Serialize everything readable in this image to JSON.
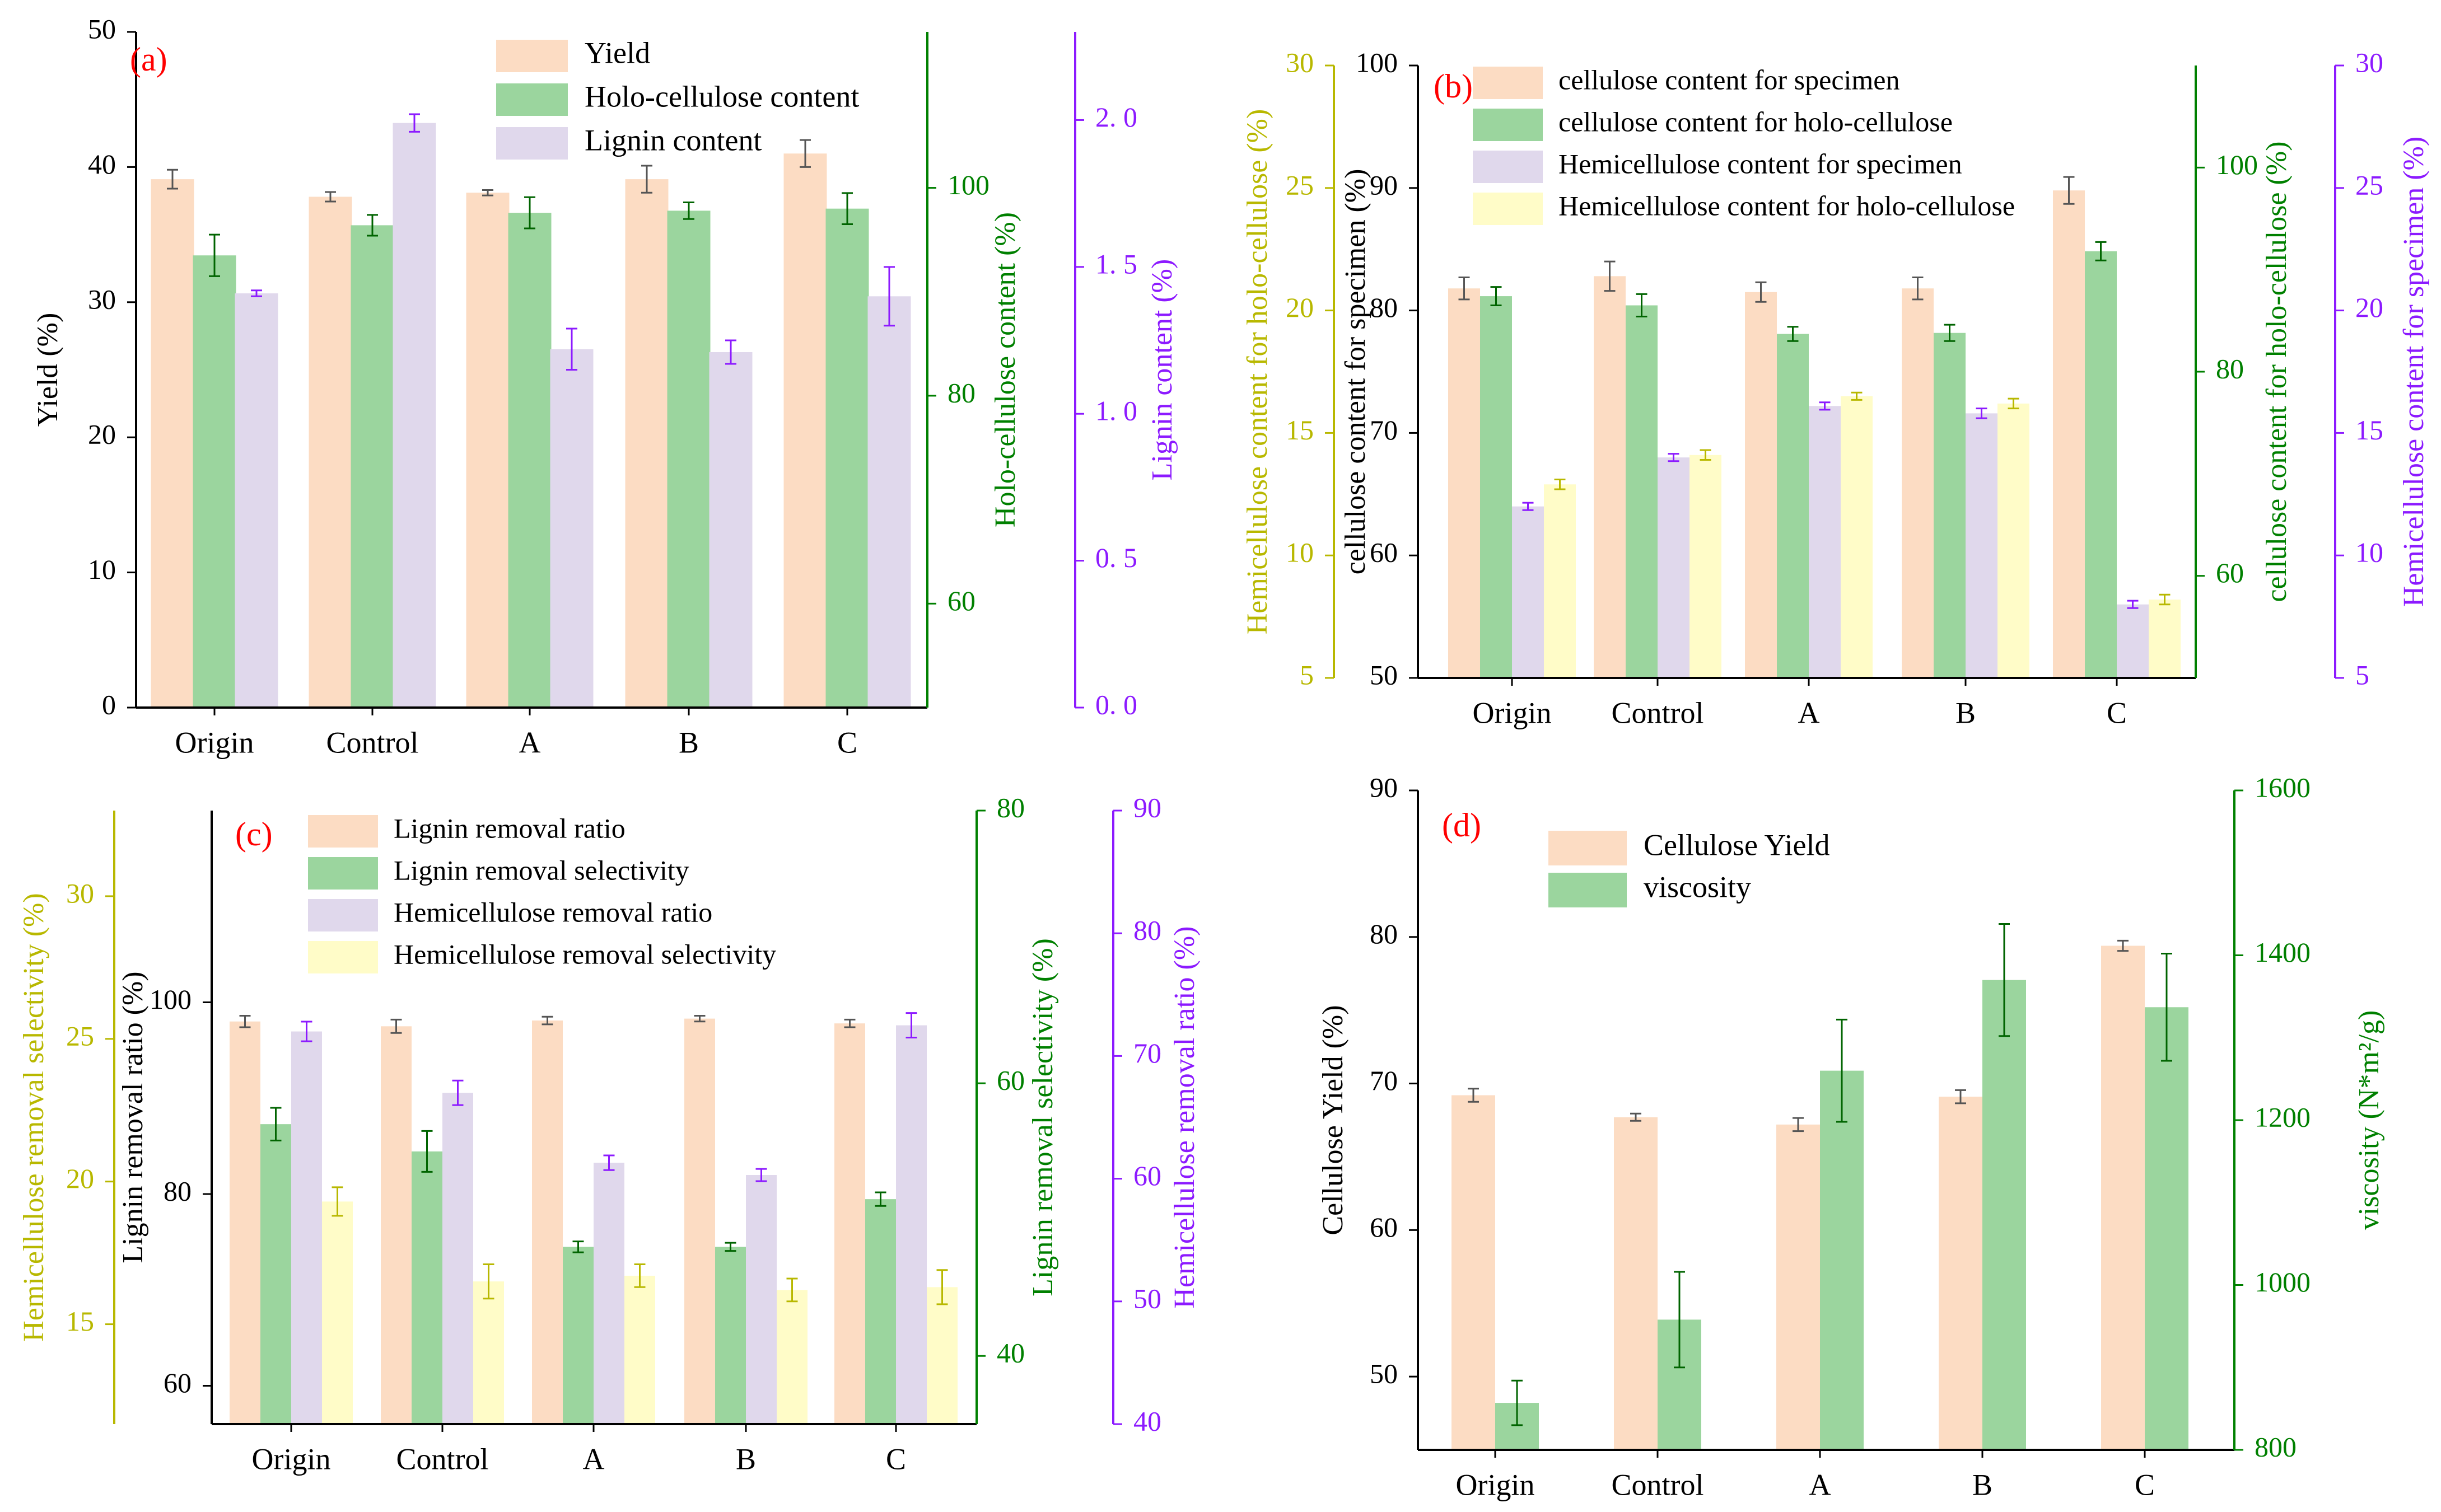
{
  "colors": {
    "peach": "#fcdcc3",
    "green": "#9bd59e",
    "lavender": "#e0d8ec",
    "cream": "#fffcc8",
    "axis_green": "#008000",
    "axis_purple": "#8c1aff",
    "axis_olive": "#b8b800",
    "panel_label": "#ff0000"
  },
  "chart_data": [
    {
      "type": "bar",
      "panel_label": "(a)",
      "categories": [
        "Origin",
        "Control",
        "A",
        "B",
        "C"
      ],
      "axes": [
        {
          "id": "y1",
          "label": "Yield (%)",
          "range": [
            0,
            50
          ],
          "ticks": [
            0,
            10,
            20,
            30,
            40,
            50
          ],
          "tick_labels": [
            "0",
            "10",
            "20",
            "30",
            "40",
            "50"
          ],
          "color": "#000000"
        },
        {
          "id": "y2",
          "label": "Holo-cellulose content (%)",
          "range": [
            50,
            115
          ],
          "ticks": [
            60,
            80,
            100
          ],
          "tick_labels": [
            "60",
            "80",
            "100"
          ],
          "color": "#008000"
        },
        {
          "id": "y3",
          "label": "Lignin content (%)",
          "range": [
            0,
            2.3
          ],
          "ticks": [
            0,
            0.5,
            1.0,
            1.5,
            2.0
          ],
          "tick_labels": [
            "0. 0",
            "0. 5",
            "1. 0",
            "1. 5",
            "2. 0"
          ],
          "color": "#8c1aff"
        }
      ],
      "series": [
        {
          "name": "Yield",
          "axis": "y1",
          "color": "#fcdcc3",
          "err_color": "#555555",
          "values": [
            39.1,
            37.8,
            38.1,
            39.1,
            41.0
          ],
          "errors": [
            0.7,
            0.35,
            0.2,
            1.0,
            1.0
          ]
        },
        {
          "name": "Holo-cellulose content",
          "axis": "y2",
          "color": "#9bd59e",
          "err_color": "#006400",
          "values": [
            93.5,
            96.4,
            97.6,
            97.8,
            98.0
          ],
          "errors": [
            2.0,
            1.0,
            1.5,
            0.8,
            1.5
          ]
        },
        {
          "name": "Lignin content",
          "axis": "y3",
          "color": "#e0d8ec",
          "err_color": "#8c1aff",
          "values": [
            1.41,
            1.99,
            1.22,
            1.21,
            1.4
          ],
          "errors": [
            0.01,
            0.03,
            0.07,
            0.04,
            0.1
          ]
        }
      ],
      "legend_position": "top-center"
    },
    {
      "type": "bar",
      "panel_label": "(b)",
      "categories": [
        "Origin",
        "Control",
        "A",
        "B",
        "C"
      ],
      "axes": [
        {
          "id": "y1",
          "label": "cellulose content for specimen (%)",
          "range": [
            50,
            100
          ],
          "ticks": [
            50,
            60,
            70,
            80,
            90,
            100
          ],
          "tick_labels": [
            "50",
            "60",
            "70",
            "80",
            "90",
            "100"
          ],
          "color": "#000000"
        },
        {
          "id": "y2",
          "label": "cellulose content for holo-cellulose (%)",
          "range": [
            50,
            110
          ],
          "ticks": [
            60,
            80,
            100
          ],
          "tick_labels": [
            "60",
            "80",
            "100"
          ],
          "color": "#008000"
        },
        {
          "id": "y3",
          "label": "Hemicellulose content for specimen (%)",
          "range": [
            5,
            30
          ],
          "ticks": [
            5,
            10,
            15,
            20,
            25,
            30
          ],
          "tick_labels": [
            "5",
            "10",
            "15",
            "20",
            "25",
            "30"
          ],
          "color": "#8c1aff"
        },
        {
          "id": "y4",
          "label": "Hemicellulose content for holo-cellulose (%)",
          "range": [
            5,
            30
          ],
          "ticks": [
            5,
            10,
            15,
            20,
            25,
            30
          ],
          "tick_labels": [
            "5",
            "10",
            "15",
            "20",
            "25",
            "30"
          ],
          "color": "#b8b800"
        }
      ],
      "series": [
        {
          "name": "cellulose content for specimen",
          "axis": "y1",
          "color": "#fcdcc3",
          "err_color": "#555555",
          "values": [
            81.8,
            82.8,
            81.5,
            81.8,
            89.8
          ],
          "errors": [
            0.9,
            1.2,
            0.8,
            0.9,
            1.1
          ]
        },
        {
          "name": "cellulose content for holo-cellulose",
          "axis": "y2",
          "color": "#9bd59e",
          "err_color": "#006400",
          "values": [
            87.4,
            86.5,
            83.7,
            83.8,
            91.8
          ],
          "errors": [
            0.9,
            1.1,
            0.7,
            0.8,
            0.9
          ]
        },
        {
          "name": "Hemicellulose content for specimen",
          "axis": "y3",
          "color": "#e0d8ec",
          "err_color": "#8c1aff",
          "values": [
            12.0,
            14.0,
            16.1,
            15.8,
            8.0
          ],
          "errors": [
            0.15,
            0.15,
            0.15,
            0.2,
            0.15
          ]
        },
        {
          "name": "Hemicellulose content for holo-cellulose",
          "axis": "y4",
          "color": "#fffcc8",
          "err_color": "#b8b800",
          "values": [
            12.9,
            14.1,
            16.5,
            16.2,
            8.2
          ],
          "errors": [
            0.2,
            0.2,
            0.15,
            0.2,
            0.2
          ]
        }
      ],
      "legend_position": "top-left"
    },
    {
      "type": "bar",
      "panel_label": "(c)",
      "categories": [
        "Origin",
        "Control",
        "A",
        "B",
        "C"
      ],
      "axes": [
        {
          "id": "y1",
          "label": "Lignin removal ratio (%)",
          "range": [
            56,
            120
          ],
          "ticks": [
            60,
            80,
            100
          ],
          "tick_labels": [
            "60",
            "80",
            "100"
          ],
          "color": "#000000"
        },
        {
          "id": "y2",
          "label": "Lignin removal selectivity (%)",
          "range": [
            35,
            80
          ],
          "ticks": [
            40,
            60,
            80
          ],
          "tick_labels": [
            "40",
            "60",
            "80"
          ],
          "color": "#008000"
        },
        {
          "id": "y3",
          "label": "Hemicellulose removal ratio (%)",
          "range": [
            40,
            90
          ],
          "ticks": [
            40,
            50,
            60,
            70,
            80,
            90
          ],
          "tick_labels": [
            "40",
            "50",
            "60",
            "70",
            "80",
            "90"
          ],
          "color": "#8c1aff"
        },
        {
          "id": "y4",
          "label": "Hemicellulose removal selectivity (%)",
          "range": [
            11.5,
            33
          ],
          "ticks": [
            15,
            20,
            25,
            30
          ],
          "tick_labels": [
            "15",
            "20",
            "25",
            "30"
          ],
          "color": "#b8b800"
        }
      ],
      "series": [
        {
          "name": "Lignin removal ratio",
          "axis": "y1",
          "color": "#fcdcc3",
          "err_color": "#555555",
          "values": [
            98.0,
            97.5,
            98.1,
            98.3,
            97.8
          ],
          "errors": [
            0.6,
            0.7,
            0.4,
            0.3,
            0.4
          ]
        },
        {
          "name": "Lignin removal selectivity",
          "axis": "y2",
          "color": "#9bd59e",
          "err_color": "#006400",
          "values": [
            57.0,
            55.0,
            48.0,
            48.0,
            51.5
          ],
          "errors": [
            1.2,
            1.5,
            0.4,
            0.3,
            0.5
          ]
        },
        {
          "name": "Hemicellulose removal ratio",
          "axis": "y3",
          "color": "#e0d8ec",
          "err_color": "#8c1aff",
          "values": [
            72.0,
            67.0,
            61.3,
            60.3,
            72.5
          ],
          "errors": [
            0.8,
            1.0,
            0.6,
            0.5,
            1.0
          ]
        },
        {
          "name": "Hemicellulose removal selectivity",
          "axis": "y4",
          "color": "#fffcc8",
          "err_color": "#b8b800",
          "values": [
            19.3,
            16.5,
            16.7,
            16.2,
            16.3
          ],
          "errors": [
            0.5,
            0.6,
            0.4,
            0.4,
            0.6
          ]
        }
      ],
      "legend_position": "top-center"
    },
    {
      "type": "bar",
      "panel_label": "(d)",
      "categories": [
        "Origin",
        "Control",
        "A",
        "B",
        "C"
      ],
      "axes": [
        {
          "id": "y1",
          "label": "Cellulose Yield (%)",
          "range": [
            45,
            90
          ],
          "ticks": [
            50,
            60,
            70,
            80,
            90
          ],
          "tick_labels": [
            "50",
            "60",
            "70",
            "80",
            "90"
          ],
          "color": "#000000"
        },
        {
          "id": "y2",
          "label": "viscosity (N*m²/g)",
          "range": [
            800,
            1600
          ],
          "ticks": [
            800,
            1000,
            1200,
            1400,
            1600
          ],
          "tick_labels": [
            "800",
            "1000",
            "1200",
            "1400",
            "1600"
          ],
          "color": "#008000"
        }
      ],
      "series": [
        {
          "name": "Cellulose Yield",
          "axis": "y1",
          "color": "#fcdcc3",
          "err_color": "#555555",
          "values": [
            69.2,
            67.7,
            67.2,
            69.1,
            79.4
          ],
          "errors": [
            0.45,
            0.25,
            0.45,
            0.45,
            0.35
          ]
        },
        {
          "name": "viscosity",
          "axis": "y2",
          "color": "#9bd59e",
          "err_color": "#006400",
          "values": [
            857,
            958,
            1260,
            1370,
            1337
          ],
          "errors": [
            27,
            58,
            62,
            68,
            65
          ]
        }
      ],
      "legend_position": "top-left"
    }
  ]
}
